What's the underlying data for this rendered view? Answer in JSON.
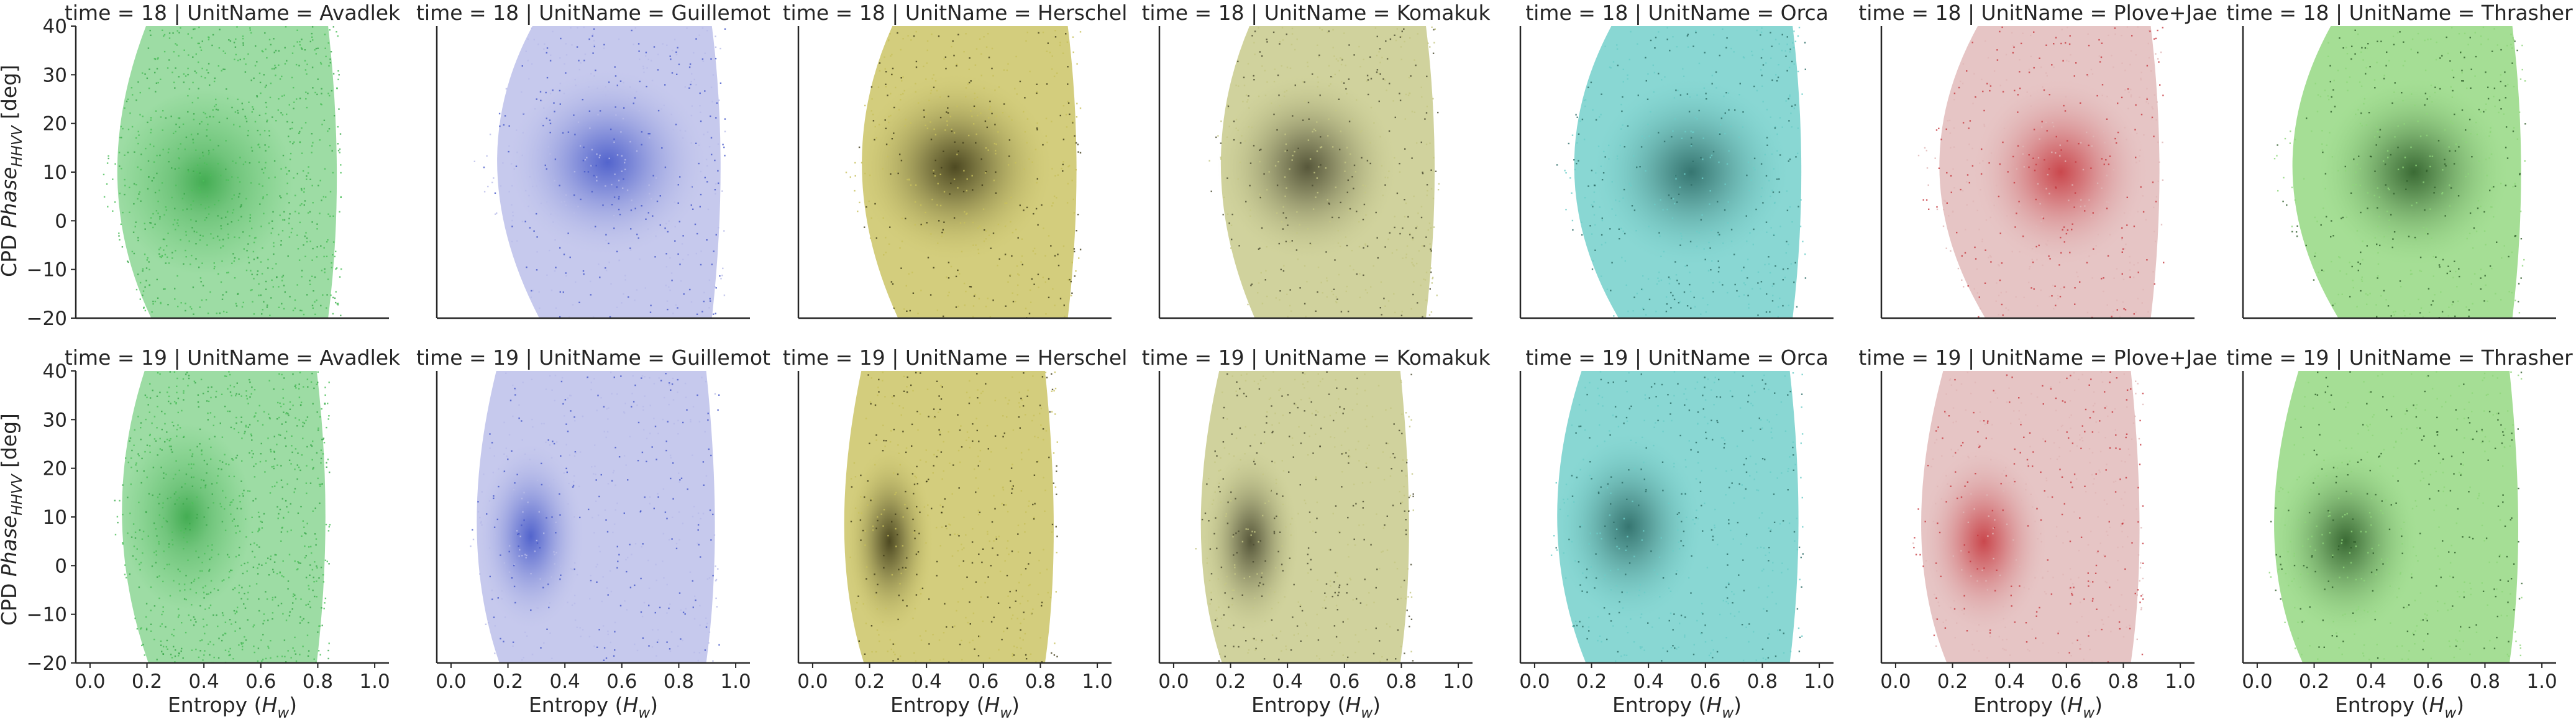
{
  "figure": {
    "ylabel_main": "CPD ",
    "ylabel_phase": "Phase",
    "ylabel_sub": "HHVV",
    "ylabel_unit": " [deg]",
    "xlabel_main": "Entropy (",
    "xlabel_var": "H",
    "xlabel_sub": "w",
    "xlabel_close": ")"
  },
  "chart_data": {
    "type": "scatter",
    "grid": false,
    "legend": "none",
    "xlim": [
      -0.05,
      1.05
    ],
    "ylim": [
      -20,
      40
    ],
    "xticks": [
      0.0,
      0.2,
      0.4,
      0.6,
      0.8,
      1.0
    ],
    "xtick_labels": [
      "0.0",
      "0.2",
      "0.4",
      "0.6",
      "0.8",
      "1.0"
    ],
    "yticks": [
      -20,
      -10,
      0,
      10,
      20,
      30,
      40
    ],
    "ytick_labels": [
      "−20",
      "−10",
      "0",
      "10",
      "20",
      "30",
      "40"
    ],
    "rows": [
      {
        "time": 18,
        "label": "time = 18"
      },
      {
        "time": 19,
        "label": "time = 19"
      }
    ],
    "units": [
      {
        "name": "Avadlek",
        "color": "#4cbf5a",
        "dark": "#3aa84a"
      },
      {
        "name": "Guillemot",
        "color": "#b8bce8",
        "dark": "#4659c9"
      },
      {
        "name": "Herschel",
        "color": "#c8c05c",
        "dark": "#3f3b18"
      },
      {
        "name": "Komakuk",
        "color": "#c4c784",
        "dark": "#4a4a30"
      },
      {
        "name": "Orca",
        "color": "#6ccdc8",
        "dark": "#2d6b66"
      },
      {
        "name": "Plove+Jae",
        "color": "#e0b6b6",
        "dark": "#c73a40"
      },
      {
        "name": "Thrasher",
        "color": "#8ed67a",
        "dark": "#2f5e2a"
      }
    ],
    "panels": [
      {
        "time": 18,
        "unit": "Avadlek",
        "title": "time = 18 | UnitName = Avadlek",
        "x_range": [
          0.03,
          0.88
        ],
        "y_range": [
          -20,
          40
        ],
        "x_center": 0.4,
        "y_center": 8,
        "density": "low"
      },
      {
        "time": 18,
        "unit": "Guillemot",
        "title": "time = 18 | UnitName = Guillemot",
        "x_range": [
          0.07,
          0.96
        ],
        "y_range": [
          -20,
          40
        ],
        "x_center": 0.55,
        "y_center": 12,
        "density": "high"
      },
      {
        "time": 18,
        "unit": "Herschel",
        "title": "time = 18 | UnitName = Herschel",
        "x_range": [
          0.1,
          0.94
        ],
        "y_range": [
          -20,
          40
        ],
        "x_center": 0.5,
        "y_center": 11,
        "density": "high"
      },
      {
        "time": 18,
        "unit": "Komakuk",
        "title": "time = 18 | UnitName = Komakuk",
        "x_range": [
          0.1,
          0.93
        ],
        "y_range": [
          -20,
          40
        ],
        "x_center": 0.47,
        "y_center": 11,
        "density": "high"
      },
      {
        "time": 18,
        "unit": "Orca",
        "title": "time = 18 | UnitName = Orca",
        "x_range": [
          0.04,
          0.95
        ],
        "y_range": [
          -20,
          40
        ],
        "x_center": 0.55,
        "y_center": 10,
        "density": "high"
      },
      {
        "time": 18,
        "unit": "Plove+Jae",
        "title": "time = 18 | UnitName = Plove+Jae",
        "x_range": [
          0.05,
          0.94
        ],
        "y_range": [
          -20,
          40
        ],
        "x_center": 0.58,
        "y_center": 10,
        "density": "high"
      },
      {
        "time": 18,
        "unit": "Thrasher",
        "title": "time = 18 | UnitName = Thrasher",
        "x_range": [
          0.02,
          0.94
        ],
        "y_range": [
          -20,
          40
        ],
        "x_center": 0.55,
        "y_center": 10,
        "density": "high"
      },
      {
        "time": 19,
        "unit": "Avadlek",
        "title": "time = 19 | UnitName = Avadlek",
        "x_range": [
          0.07,
          0.84
        ],
        "y_range": [
          -20,
          40
        ],
        "x_center": 0.34,
        "y_center": 10,
        "density": "low"
      },
      {
        "time": 19,
        "unit": "Guillemot",
        "title": "time = 19 | UnitName = Guillemot",
        "x_range": [
          0.06,
          0.94
        ],
        "y_range": [
          -20,
          40
        ],
        "x_center": 0.28,
        "y_center": 6,
        "density": "high"
      },
      {
        "time": 19,
        "unit": "Herschel",
        "title": "time = 19 | UnitName = Herschel",
        "x_range": [
          0.09,
          0.86
        ],
        "y_range": [
          -20,
          40
        ],
        "x_center": 0.27,
        "y_center": 5,
        "density": "high"
      },
      {
        "time": 19,
        "unit": "Komakuk",
        "title": "time = 19 | UnitName = Komakuk",
        "x_range": [
          0.07,
          0.84
        ],
        "y_range": [
          -20,
          40
        ],
        "x_center": 0.27,
        "y_center": 5,
        "density": "high"
      },
      {
        "time": 19,
        "unit": "Orca",
        "title": "time = 19 | UnitName = Orca",
        "x_range": [
          0.03,
          0.94
        ],
        "y_range": [
          -20,
          40
        ],
        "x_center": 0.33,
        "y_center": 8,
        "density": "high"
      },
      {
        "time": 19,
        "unit": "Plove+Jae",
        "title": "time = 19 | UnitName = Plove+Jae",
        "x_range": [
          0.05,
          0.87
        ],
        "y_range": [
          -20,
          40
        ],
        "x_center": 0.31,
        "y_center": 5,
        "density": "high"
      },
      {
        "time": 19,
        "unit": "Thrasher",
        "title": "time = 19 | UnitName = Thrasher",
        "x_range": [
          0.01,
          0.93
        ],
        "y_range": [
          -20,
          40
        ],
        "x_center": 0.31,
        "y_center": 5,
        "density": "high"
      }
    ]
  }
}
